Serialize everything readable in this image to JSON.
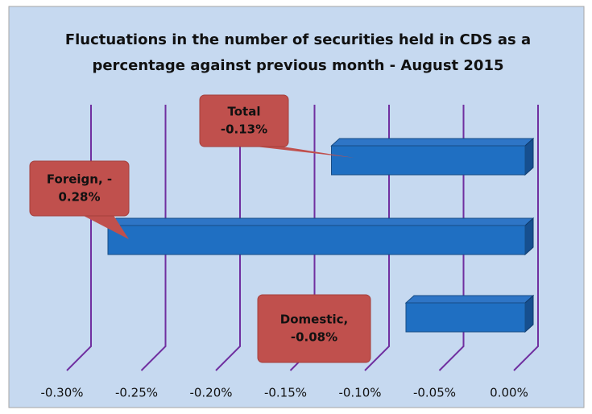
{
  "chart_data": {
    "type": "bar",
    "orientation": "horizontal",
    "title": "Fluctuations in the number of securities held in CDS as a percentage against previous month - August 2015",
    "values": [
      -0.13,
      -0.28,
      -0.08
    ],
    "value_labels": [
      [
        "Total",
        "-0.13%"
      ],
      [
        "Foreign, -",
        "0.28%"
      ],
      [
        "Domestic,",
        "-0.08%"
      ]
    ],
    "color": "#1f6fc2",
    "label_color": "#c0504d",
    "grid_color": "#7030a0",
    "xlim": [
      -0.3,
      0.0
    ],
    "xticks": [
      {
        "value": -0.3,
        "label": "-0.30%"
      },
      {
        "value": -0.25,
        "label": "-0.25%"
      },
      {
        "value": -0.2,
        "label": "-0.20%"
      },
      {
        "value": -0.15,
        "label": "-0.15%"
      },
      {
        "value": -0.1,
        "label": "-0.10%"
      },
      {
        "value": -0.05,
        "label": "-0.05%"
      },
      {
        "value": 0.0,
        "label": "0.00%"
      }
    ],
    "grid": true
  }
}
